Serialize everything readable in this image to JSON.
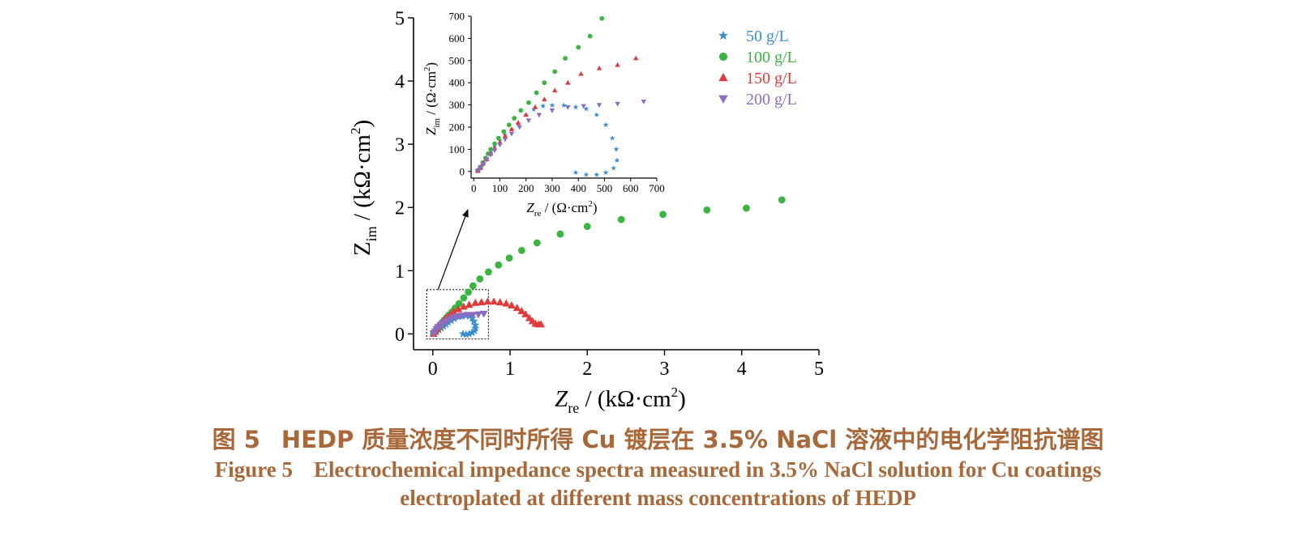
{
  "chart_data": [
    {
      "id": "main",
      "type": "scatter",
      "xlabel": {
        "symbol": "Z",
        "sub": "re",
        "unit": " / (kΩ·cm",
        "sup": "2",
        "close": ")"
      },
      "ylabel": {
        "symbol": "Z",
        "sub": "im",
        "unit": " / (kΩ·cm",
        "sup": "2",
        "close": ")"
      },
      "xlim": [
        -0.25,
        5
      ],
      "ylim": [
        -0.25,
        5
      ],
      "xticks": [
        0,
        1,
        2,
        3,
        4,
        5
      ],
      "yticks": [
        0,
        1,
        2,
        3,
        4,
        5
      ],
      "inset_box": {
        "x": [
          -0.08,
          0.72
        ],
        "y": [
          -0.08,
          0.7
        ]
      },
      "series": [
        {
          "name": "50 g/L",
          "marker": "star",
          "color": "#3a8fcf",
          "points": [
            [
              0.02,
              0.01
            ],
            [
              0.05,
              0.03
            ],
            [
              0.08,
              0.06
            ],
            [
              0.11,
              0.09
            ],
            [
              0.14,
              0.12
            ],
            [
              0.17,
              0.15
            ],
            [
              0.2,
              0.18
            ],
            [
              0.24,
              0.21
            ],
            [
              0.28,
              0.24
            ],
            [
              0.33,
              0.27
            ],
            [
              0.38,
              0.28
            ],
            [
              0.43,
              0.29
            ],
            [
              0.47,
              0.28
            ],
            [
              0.51,
              0.25
            ],
            [
              0.53,
              0.2
            ],
            [
              0.55,
              0.14
            ],
            [
              0.55,
              0.09
            ],
            [
              0.54,
              0.05
            ],
            [
              0.51,
              0.02
            ],
            [
              0.47,
              0.0
            ],
            [
              0.43,
              -0.01
            ],
            [
              0.39,
              0.0
            ]
          ]
        },
        {
          "name": "100 g/L",
          "marker": "circle",
          "color": "#3cb441",
          "points": [
            [
              0.01,
              0.01
            ],
            [
              0.03,
              0.04
            ],
            [
              0.05,
              0.07
            ],
            [
              0.07,
              0.1
            ],
            [
              0.09,
              0.13
            ],
            [
              0.11,
              0.16
            ],
            [
              0.13,
              0.19
            ],
            [
              0.15,
              0.22
            ],
            [
              0.18,
              0.26
            ],
            [
              0.21,
              0.3
            ],
            [
              0.25,
              0.35
            ],
            [
              0.29,
              0.41
            ],
            [
              0.34,
              0.48
            ],
            [
              0.4,
              0.57
            ],
            [
              0.46,
              0.66
            ],
            [
              0.52,
              0.76
            ],
            [
              0.61,
              0.87
            ],
            [
              0.72,
              0.98
            ],
            [
              0.85,
              1.09
            ],
            [
              0.99,
              1.2
            ],
            [
              1.15,
              1.32
            ],
            [
              1.35,
              1.44
            ],
            [
              1.65,
              1.58
            ],
            [
              2.0,
              1.7
            ],
            [
              2.44,
              1.81
            ],
            [
              2.98,
              1.89
            ],
            [
              3.55,
              1.96
            ],
            [
              4.06,
              1.99
            ],
            [
              4.52,
              2.12
            ]
          ]
        },
        {
          "name": "150 g/L",
          "marker": "triangle-up",
          "color": "#e03b3b",
          "points": [
            [
              0.01,
              0.0
            ],
            [
              0.03,
              0.04
            ],
            [
              0.05,
              0.08
            ],
            [
              0.07,
              0.12
            ],
            [
              0.1,
              0.16
            ],
            [
              0.13,
              0.2
            ],
            [
              0.17,
              0.25
            ],
            [
              0.22,
              0.3
            ],
            [
              0.27,
              0.35
            ],
            [
              0.33,
              0.39
            ],
            [
              0.4,
              0.43
            ],
            [
              0.47,
              0.46
            ],
            [
              0.55,
              0.49
            ],
            [
              0.63,
              0.5
            ],
            [
              0.71,
              0.51
            ],
            [
              0.79,
              0.51
            ],
            [
              0.87,
              0.5
            ],
            [
              0.95,
              0.48
            ],
            [
              1.02,
              0.45
            ],
            [
              1.09,
              0.41
            ],
            [
              1.15,
              0.36
            ],
            [
              1.2,
              0.31
            ],
            [
              1.25,
              0.25
            ],
            [
              1.29,
              0.2
            ],
            [
              1.33,
              0.16
            ],
            [
              1.37,
              0.15
            ],
            [
              1.4,
              0.15
            ]
          ]
        },
        {
          "name": "200 g/L",
          "marker": "triangle-down",
          "color": "#8d6cc0",
          "points": [
            [
              0.01,
              0.01
            ],
            [
              0.03,
              0.04
            ],
            [
              0.05,
              0.08
            ],
            [
              0.07,
              0.11
            ],
            [
              0.1,
              0.14
            ],
            [
              0.13,
              0.17
            ],
            [
              0.17,
              0.2
            ],
            [
              0.21,
              0.23
            ],
            [
              0.26,
              0.26
            ],
            [
              0.32,
              0.28
            ],
            [
              0.38,
              0.29
            ],
            [
              0.45,
              0.3
            ],
            [
              0.52,
              0.3
            ],
            [
              0.59,
              0.31
            ],
            [
              0.66,
              0.32
            ]
          ]
        }
      ]
    },
    {
      "id": "inset",
      "type": "scatter",
      "xlabel": {
        "symbol": "Z",
        "sub": "re",
        "unit": " / (Ω·cm",
        "sup": "2",
        "close": ")"
      },
      "ylabel": {
        "symbol": "Z",
        "sub": "im",
        "unit": " / (Ω·cm",
        "sup": "2",
        "close": ")"
      },
      "xlim": [
        -10,
        700
      ],
      "ylim": [
        -30,
        700
      ],
      "xticks": [
        0,
        100,
        200,
        300,
        400,
        500,
        600,
        700
      ],
      "yticks": [
        0,
        100,
        200,
        300,
        400,
        500,
        600,
        700
      ],
      "series": [
        {
          "name": "50 g/L",
          "marker": "star",
          "color": "#3a8fcf",
          "points": [
            [
              20,
              5
            ],
            [
              30,
              20
            ],
            [
              40,
              40
            ],
            [
              50,
              60
            ],
            [
              65,
              85
            ],
            [
              80,
              110
            ],
            [
              100,
              140
            ],
            [
              120,
              165
            ],
            [
              145,
              190
            ],
            [
              170,
              215
            ],
            [
              200,
              255
            ],
            [
              230,
              280
            ],
            [
              265,
              295
            ],
            [
              300,
              298
            ],
            [
              345,
              298
            ],
            [
              390,
              290
            ],
            [
              430,
              282
            ],
            [
              470,
              255
            ],
            [
              505,
              210
            ],
            [
              530,
              150
            ],
            [
              545,
              100
            ],
            [
              548,
              50
            ],
            [
              535,
              15
            ],
            [
              505,
              -5
            ],
            [
              470,
              -15
            ],
            [
              430,
              -15
            ],
            [
              390,
              -5
            ]
          ]
        },
        {
          "name": "100 g/L",
          "marker": "circle",
          "color": "#3cb441",
          "points": [
            [
              15,
              5
            ],
            [
              25,
              20
            ],
            [
              35,
              40
            ],
            [
              45,
              60
            ],
            [
              55,
              80
            ],
            [
              65,
              100
            ],
            [
              80,
              125
            ],
            [
              95,
              150
            ],
            [
              115,
              180
            ],
            [
              135,
              210
            ],
            [
              155,
              240
            ],
            [
              180,
              275
            ],
            [
              210,
              310
            ],
            [
              240,
              355
            ],
            [
              270,
              400
            ],
            [
              310,
              450
            ],
            [
              350,
              510
            ],
            [
              400,
              560
            ],
            [
              445,
              610
            ],
            [
              490,
              690
            ]
          ]
        },
        {
          "name": "150 g/L",
          "marker": "triangle-up",
          "color": "#e03b3b",
          "points": [
            [
              15,
              2
            ],
            [
              25,
              15
            ],
            [
              35,
              35
            ],
            [
              50,
              55
            ],
            [
              65,
              80
            ],
            [
              80,
              105
            ],
            [
              100,
              130
            ],
            [
              120,
              160
            ],
            [
              145,
              190
            ],
            [
              170,
              220
            ],
            [
              200,
              255
            ],
            [
              235,
              290
            ],
            [
              270,
              325
            ],
            [
              310,
              365
            ],
            [
              360,
              400
            ],
            [
              410,
              440
            ],
            [
              480,
              465
            ],
            [
              550,
              480
            ],
            [
              620,
              510
            ]
          ]
        },
        {
          "name": "200 g/L",
          "marker": "triangle-down",
          "color": "#8d6cc0",
          "points": [
            [
              15,
              3
            ],
            [
              25,
              18
            ],
            [
              35,
              35
            ],
            [
              50,
              55
            ],
            [
              65,
              75
            ],
            [
              80,
              95
            ],
            [
              100,
              120
            ],
            [
              120,
              145
            ],
            [
              145,
              170
            ],
            [
              175,
              200
            ],
            [
              210,
              230
            ],
            [
              250,
              255
            ],
            [
              300,
              275
            ],
            [
              360,
              290
            ],
            [
              420,
              295
            ],
            [
              480,
              300
            ],
            [
              550,
              305
            ],
            [
              650,
              315
            ]
          ]
        }
      ]
    }
  ],
  "caption": {
    "cn_label": "图 5",
    "cn_text": "HEDP 质量浓度不同时所得 Cu 镀层在 3.5% NaCl 溶液中的电化学阻抗谱图",
    "en_label": "Figure 5",
    "en_text_line1": "Electrochemical impedance spectra measured in 3.5% NaCl solution for Cu coatings",
    "en_text_line2": "electroplated at different mass concentrations of HEDP"
  }
}
